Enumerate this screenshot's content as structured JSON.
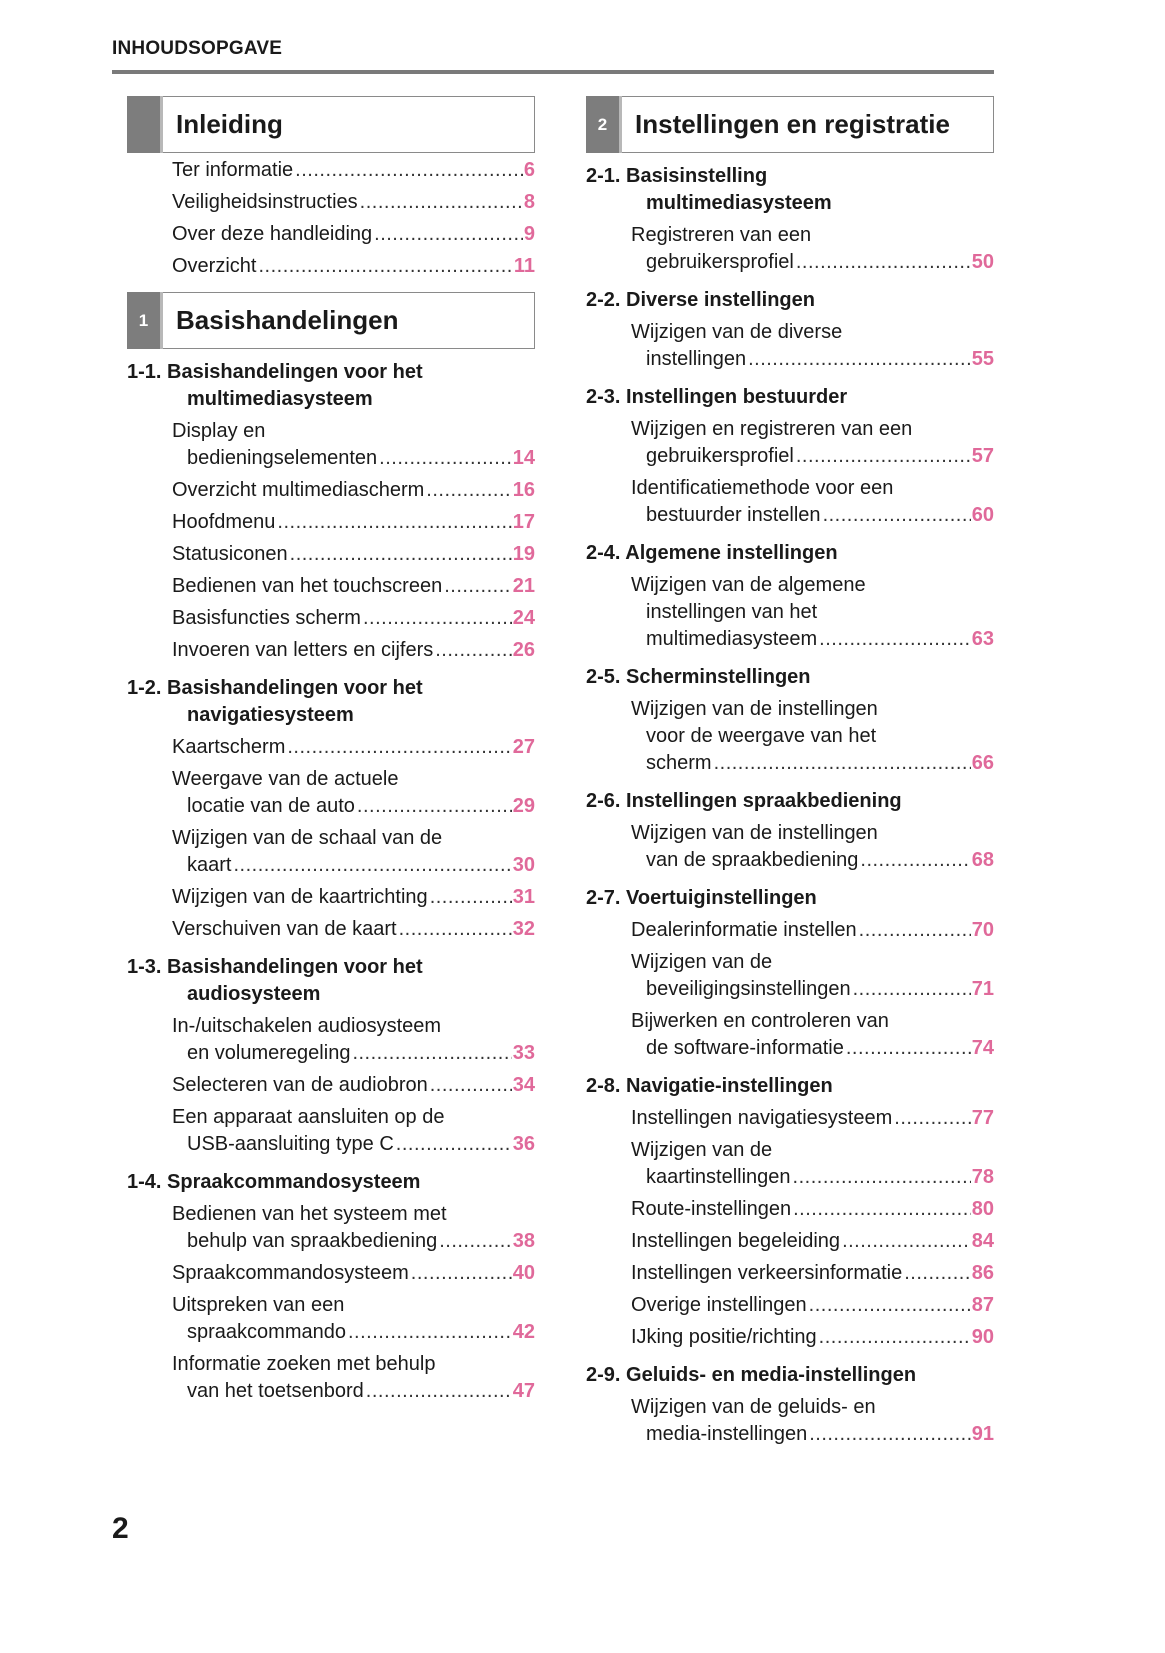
{
  "header": {
    "title": "INHOUDSOPGAVE"
  },
  "page_number": "2",
  "accent_color": "#e0699a",
  "columns": {
    "left": [
      {
        "type": "box",
        "num": "",
        "title": "Inleiding"
      },
      {
        "type": "entry",
        "lines": [
          "Ter informatie"
        ],
        "page": "6"
      },
      {
        "type": "entry",
        "lines": [
          "Veiligheidsinstructies"
        ],
        "page": "8"
      },
      {
        "type": "entry",
        "lines": [
          "Over deze handleiding"
        ],
        "page": "9"
      },
      {
        "type": "entry",
        "lines": [
          "Overzicht"
        ],
        "page": "11"
      },
      {
        "type": "box",
        "num": "1",
        "title": "Basishandelingen"
      },
      {
        "type": "section",
        "lines": [
          "1-1. Basishandelingen voor het",
          "multimediasysteem"
        ]
      },
      {
        "type": "entry",
        "lines": [
          "Display en",
          "bedieningselementen"
        ],
        "page": "14"
      },
      {
        "type": "entry",
        "lines": [
          "Overzicht multimediascherm"
        ],
        "page": "16"
      },
      {
        "type": "entry",
        "lines": [
          "Hoofdmenu"
        ],
        "page": "17"
      },
      {
        "type": "entry",
        "lines": [
          "Statusiconen"
        ],
        "page": "19"
      },
      {
        "type": "entry",
        "lines": [
          "Bedienen van het touchscreen"
        ],
        "page": "21"
      },
      {
        "type": "entry",
        "lines": [
          "Basisfuncties scherm"
        ],
        "page": "24"
      },
      {
        "type": "entry",
        "lines": [
          "Invoeren van letters en cijfers"
        ],
        "page": "26"
      },
      {
        "type": "section",
        "lines": [
          "1-2. Basishandelingen voor het",
          "navigatiesysteem"
        ]
      },
      {
        "type": "entry",
        "lines": [
          "Kaartscherm"
        ],
        "page": "27"
      },
      {
        "type": "entry",
        "lines": [
          "Weergave van de actuele",
          "locatie van de auto"
        ],
        "page": "29"
      },
      {
        "type": "entry",
        "lines": [
          "Wijzigen van de schaal van de",
          "kaart"
        ],
        "page": "30"
      },
      {
        "type": "entry",
        "lines": [
          "Wijzigen van de kaartrichting"
        ],
        "page": "31"
      },
      {
        "type": "entry",
        "lines": [
          "Verschuiven van de kaart"
        ],
        "page": "32"
      },
      {
        "type": "section",
        "lines": [
          "1-3. Basishandelingen voor het",
          "audiosysteem"
        ]
      },
      {
        "type": "entry",
        "lines": [
          "In-/uitschakelen audiosysteem",
          "en volumeregeling"
        ],
        "page": "33"
      },
      {
        "type": "entry",
        "lines": [
          "Selecteren van de audiobron"
        ],
        "page": "34"
      },
      {
        "type": "entry",
        "lines": [
          "Een apparaat aansluiten op de",
          "USB-aansluiting type C"
        ],
        "page": "36"
      },
      {
        "type": "section",
        "lines": [
          "1-4. Spraakcommandosysteem"
        ]
      },
      {
        "type": "entry",
        "lines": [
          "Bedienen van het systeem met",
          "behulp van spraakbediening"
        ],
        "page": "38"
      },
      {
        "type": "entry",
        "lines": [
          "Spraakcommandosysteem"
        ],
        "page": "40"
      },
      {
        "type": "entry",
        "lines": [
          "Uitspreken van een",
          "spraakcommando"
        ],
        "page": "42"
      },
      {
        "type": "entry",
        "lines": [
          "Informatie zoeken met behulp",
          "van het toetsenbord"
        ],
        "page": "47"
      }
    ],
    "right": [
      {
        "type": "box",
        "num": "2",
        "title": "Instellingen en registratie"
      },
      {
        "type": "section",
        "lines": [
          "2-1. Basisinstelling",
          "multimediasysteem"
        ]
      },
      {
        "type": "entry",
        "lines": [
          "Registreren van een",
          "gebruikersprofiel"
        ],
        "page": "50"
      },
      {
        "type": "section",
        "lines": [
          "2-2. Diverse instellingen"
        ]
      },
      {
        "type": "entry",
        "lines": [
          "Wijzigen van de diverse",
          "instellingen"
        ],
        "page": "55"
      },
      {
        "type": "section",
        "lines": [
          "2-3. Instellingen bestuurder"
        ]
      },
      {
        "type": "entry",
        "lines": [
          "Wijzigen en registreren van een",
          "gebruikersprofiel"
        ],
        "page": "57"
      },
      {
        "type": "entry",
        "lines": [
          "Identificatiemethode voor een",
          "bestuurder instellen"
        ],
        "page": "60"
      },
      {
        "type": "section",
        "lines": [
          "2-4. Algemene instellingen"
        ]
      },
      {
        "type": "entry",
        "lines": [
          "Wijzigen van de algemene",
          "instellingen van het",
          "multimediasysteem"
        ],
        "page": "63"
      },
      {
        "type": "section",
        "lines": [
          "2-5. Scherminstellingen"
        ]
      },
      {
        "type": "entry",
        "lines": [
          "Wijzigen van de instellingen",
          "voor de weergave van het",
          "scherm"
        ],
        "page": "66"
      },
      {
        "type": "section",
        "lines": [
          "2-6. Instellingen spraakbediening"
        ]
      },
      {
        "type": "entry",
        "lines": [
          "Wijzigen van de instellingen",
          "van de spraakbediening"
        ],
        "page": "68"
      },
      {
        "type": "section",
        "lines": [
          "2-7. Voertuiginstellingen"
        ]
      },
      {
        "type": "entry",
        "lines": [
          "Dealerinformatie instellen"
        ],
        "page": "70"
      },
      {
        "type": "entry",
        "lines": [
          "Wijzigen van de",
          "beveiligingsinstellingen"
        ],
        "page": "71"
      },
      {
        "type": "entry",
        "lines": [
          "Bijwerken en controleren van",
          "de software-informatie"
        ],
        "page": "74"
      },
      {
        "type": "section",
        "lines": [
          "2-8. Navigatie-instellingen"
        ]
      },
      {
        "type": "entry",
        "lines": [
          "Instellingen navigatiesysteem"
        ],
        "page": "77"
      },
      {
        "type": "entry",
        "lines": [
          "Wijzigen van de",
          "kaartinstellingen"
        ],
        "page": "78"
      },
      {
        "type": "entry",
        "lines": [
          "Route-instellingen"
        ],
        "page": "80"
      },
      {
        "type": "entry",
        "lines": [
          "Instellingen begeleiding"
        ],
        "page": "84"
      },
      {
        "type": "entry",
        "lines": [
          "Instellingen verkeersinformatie"
        ],
        "page": "86"
      },
      {
        "type": "entry",
        "lines": [
          "Overige instellingen"
        ],
        "page": "87"
      },
      {
        "type": "entry",
        "lines": [
          "IJking positie/richting"
        ],
        "page": "90"
      },
      {
        "type": "section",
        "lines": [
          "2-9. Geluids- en media-instellingen"
        ]
      },
      {
        "type": "entry",
        "lines": [
          "Wijzigen van de geluids- en",
          "media-instellingen"
        ],
        "page": "91"
      }
    ]
  }
}
